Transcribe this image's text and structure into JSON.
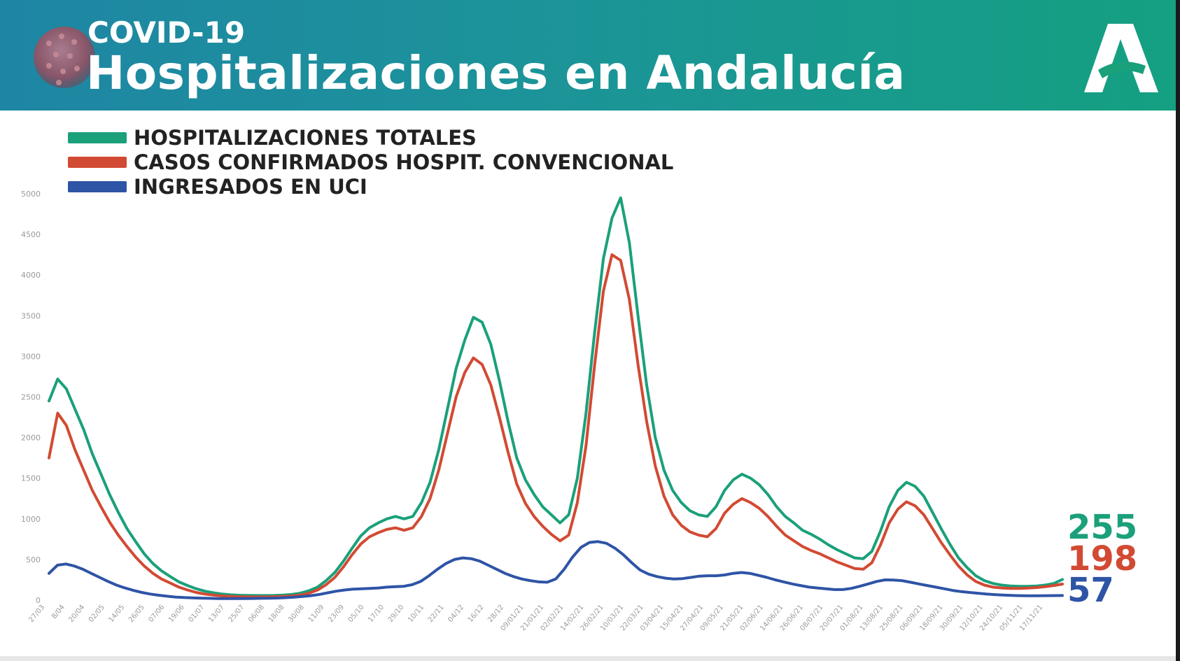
{
  "header": {
    "subtitle": "COVID-19",
    "title": "Hospitalizaciones en Andalucía"
  },
  "colors": {
    "header_start": "#1e86a4",
    "header_end": "#14a081",
    "green": "#1aa07a",
    "red": "#d24a33",
    "blue": "#2e54a6",
    "axis_text": "#9a9a9a"
  },
  "chart_data": {
    "type": "line",
    "title": "",
    "xlabel": "",
    "ylabel": "",
    "ylim": [
      0,
      5000
    ],
    "y_ticks": [
      0,
      500,
      1000,
      1500,
      2000,
      2500,
      3000,
      3500,
      4000,
      4500,
      5000
    ],
    "grid": false,
    "legend_position": "top-left",
    "x_tick_labels": [
      "27/03",
      "8/04",
      "20/04",
      "02/05",
      "14/05",
      "26/05",
      "07/06",
      "19/06",
      "01/07",
      "13/07",
      "25/07",
      "06/08",
      "18/08",
      "30/08",
      "11/09",
      "23/09",
      "05/10",
      "17/10",
      "29/10",
      "10/11",
      "22/11",
      "04/12",
      "16/12",
      "28/12",
      "09/01/21",
      "21/01/21",
      "02/02/21",
      "14/02/21",
      "26/02/21",
      "10/03/21",
      "22/03/21",
      "03/04/21",
      "15/04/21",
      "27/04/21",
      "09/05/21",
      "21/05/21",
      "02/06/21",
      "14/06/21",
      "26/06/21",
      "08/07/21",
      "20/07/21",
      "01/08/21",
      "13/08/21",
      "25/08/21",
      "06/09/21",
      "18/09/21",
      "30/09/21",
      "12/10/21",
      "24/10/21",
      "05/11/21",
      "17/11/21"
    ],
    "series": [
      {
        "name": "HOSPITALIZACIONES TOTALES",
        "color": "#1aa07a",
        "end_value": "255",
        "values": [
          2450,
          2720,
          2600,
          2350,
          2100,
          1800,
          1550,
          1300,
          1080,
          880,
          720,
          570,
          450,
          360,
          290,
          225,
          180,
          140,
          110,
          90,
          75,
          65,
          60,
          58,
          57,
          57,
          58,
          62,
          70,
          85,
          115,
          160,
          240,
          340,
          480,
          640,
          790,
          890,
          950,
          1000,
          1030,
          1000,
          1030,
          1200,
          1450,
          1850,
          2350,
          2850,
          3200,
          3480,
          3420,
          3150,
          2700,
          2200,
          1750,
          1480,
          1300,
          1150,
          1050,
          950,
          1050,
          1500,
          2300,
          3300,
          4200,
          4700,
          4950,
          4400,
          3500,
          2650,
          2000,
          1600,
          1350,
          1200,
          1100,
          1050,
          1030,
          1150,
          1350,
          1480,
          1550,
          1500,
          1420,
          1300,
          1150,
          1030,
          950,
          860,
          810,
          750,
          680,
          620,
          570,
          520,
          510,
          600,
          850,
          1150,
          1350,
          1450,
          1400,
          1280,
          1080,
          880,
          690,
          520,
          400,
          300,
          240,
          205,
          185,
          175,
          170,
          170,
          175,
          185,
          205,
          255
        ],
        "end_label": "255"
      },
      {
        "name": "CASOS CONFIRMADOS HOSPIT. CONVENCIONAL",
        "color": "#d24a33",
        "end_value": "198",
        "values": [
          1750,
          2300,
          2150,
          1850,
          1600,
          1350,
          1150,
          960,
          800,
          660,
          530,
          420,
          330,
          260,
          210,
          160,
          125,
          95,
          75,
          62,
          52,
          45,
          42,
          40,
          40,
          40,
          42,
          45,
          52,
          62,
          85,
          125,
          190,
          280,
          410,
          560,
          690,
          780,
          830,
          870,
          890,
          860,
          890,
          1030,
          1250,
          1600,
          2050,
          2500,
          2800,
          2980,
          2900,
          2650,
          2250,
          1820,
          1430,
          1190,
          1030,
          910,
          810,
          730,
          800,
          1200,
          1900,
          2900,
          3800,
          4250,
          4180,
          3700,
          2900,
          2200,
          1650,
          1280,
          1050,
          920,
          840,
          800,
          780,
          880,
          1070,
          1180,
          1250,
          1200,
          1130,
          1030,
          910,
          800,
          730,
          660,
          610,
          570,
          520,
          470,
          430,
          390,
          380,
          460,
          680,
          950,
          1120,
          1210,
          1160,
          1050,
          880,
          710,
          560,
          420,
          310,
          230,
          185,
          160,
          150,
          145,
          145,
          148,
          155,
          165,
          180,
          198
        ],
        "end_label": "198"
      },
      {
        "name": "INGRESADOS EN UCI",
        "color": "#2e54a6",
        "end_value": "57",
        "values": [
          330,
          430,
          445,
          420,
          380,
          330,
          280,
          230,
          185,
          150,
          120,
          95,
          75,
          60,
          48,
          38,
          32,
          28,
          25,
          22,
          20,
          20,
          20,
          20,
          21,
          22,
          24,
          26,
          30,
          36,
          45,
          55,
          70,
          90,
          110,
          125,
          135,
          140,
          145,
          150,
          160,
          165,
          170,
          190,
          230,
          300,
          380,
          450,
          500,
          520,
          510,
          480,
          430,
          380,
          330,
          290,
          260,
          240,
          225,
          220,
          260,
          380,
          530,
          650,
          710,
          720,
          700,
          640,
          560,
          460,
          370,
          320,
          290,
          270,
          260,
          265,
          280,
          295,
          300,
          300,
          310,
          330,
          340,
          330,
          305,
          280,
          250,
          225,
          200,
          180,
          160,
          150,
          140,
          130,
          130,
          145,
          170,
          200,
          230,
          250,
          248,
          240,
          220,
          200,
          180,
          160,
          140,
          120,
          105,
          95,
          85,
          75,
          68,
          62,
          58,
          55,
          54,
          54,
          55,
          56,
          57
        ],
        "end_label": "57"
      }
    ]
  }
}
